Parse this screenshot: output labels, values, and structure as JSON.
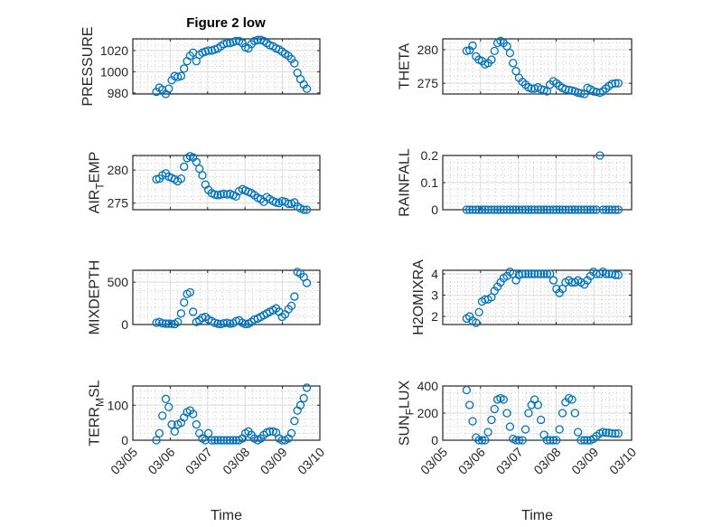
{
  "figure_title": "Figure 2 low",
  "chart_data": {
    "type": "scatter",
    "title": "Figure 2 low",
    "marker": "open-circle",
    "color": "#0072BD",
    "grid": "major+minor",
    "xlabel": "Time",
    "x_unit": "days since 03/05 00:00",
    "xlim": [
      0,
      5
    ],
    "xticks": [
      0,
      1,
      2,
      3,
      4,
      5
    ],
    "xtick_labels": [
      "03/05",
      "03/06",
      "03/07",
      "03/08",
      "03/09",
      "03/10"
    ],
    "x": [
      0.63,
      0.71,
      0.79,
      0.88,
      0.96,
      1.04,
      1.12,
      1.2,
      1.29,
      1.37,
      1.45,
      1.53,
      1.61,
      1.7,
      1.78,
      1.86,
      1.94,
      2.02,
      2.11,
      2.19,
      2.27,
      2.35,
      2.43,
      2.52,
      2.6,
      2.68,
      2.76,
      2.84,
      2.93,
      3.01,
      3.09,
      3.17,
      3.25,
      3.34,
      3.42,
      3.5,
      3.58,
      3.66,
      3.75,
      3.83,
      3.91,
      3.99,
      4.07,
      4.16,
      4.24,
      4.32,
      4.4,
      4.48,
      4.57,
      4.65
    ],
    "panels": [
      {
        "ylabel": "PRESSURE",
        "ylim": [
          979,
          1031
        ],
        "yticks": [
          980,
          1000,
          1020
        ],
        "yminor": 5,
        "values": [
          981,
          985,
          983,
          979,
          984,
          992,
          996,
          995,
          996,
          1003,
          1010,
          1015,
          1018,
          1010,
          1016,
          1018,
          1019,
          1020,
          1020,
          1021,
          1022,
          1024,
          1026,
          1027,
          1027,
          1028,
          1029,
          1029,
          1027,
          1023,
          1022,
          1026,
          1029,
          1030,
          1030,
          1029,
          1027,
          1025,
          1024,
          1022,
          1021,
          1019,
          1017,
          1015,
          1012,
          1008,
          999,
          993,
          988,
          984
        ]
      },
      {
        "ylabel": "THETA",
        "ylim": [
          273.4,
          281.6
        ],
        "yticks": [
          275,
          280
        ],
        "yminor": 1,
        "values": [
          279.8,
          279.9,
          280.6,
          279,
          278.5,
          278.3,
          277.8,
          278,
          278.5,
          279.8,
          281,
          281.3,
          281,
          280.5,
          279.5,
          278,
          276.8,
          275.8,
          275.2,
          274.8,
          274.4,
          274.2,
          274.2,
          274.4,
          274.1,
          274,
          273.8,
          274.8,
          275.3,
          275,
          274.6,
          274.3,
          274.1,
          274,
          273.9,
          273.8,
          273.6,
          273.5,
          273.4,
          274.3,
          274.1,
          273.8,
          273.7,
          273.6,
          273.8,
          274.2,
          274.6,
          274.9,
          275,
          275
        ]
      },
      {
        "ylabel": "AIR_TEMP",
        "ylim": [
          274,
          282.2
        ],
        "yticks": [
          275,
          280
        ],
        "yminor": 1,
        "values": [
          278.6,
          278.7,
          279.2,
          279.5,
          279,
          278.8,
          278.6,
          278.3,
          278.7,
          280.5,
          281.8,
          282.1,
          281.9,
          281.2,
          280.2,
          279.2,
          277.8,
          277,
          276.5,
          276.3,
          276.2,
          276.3,
          276.4,
          276.3,
          276.4,
          276.2,
          276,
          276.8,
          277.1,
          276.9,
          276.7,
          276.5,
          276.2,
          275.8,
          275.6,
          275.2,
          275.9,
          275.6,
          275.3,
          275.1,
          275,
          275.3,
          275.2,
          274.9,
          274.9,
          275.1,
          274.5,
          274.2,
          274,
          274
        ]
      },
      {
        "ylabel": "RAINFALL",
        "ylim": [
          0,
          0.2
        ],
        "yticks": [
          0,
          0.1,
          0.2
        ],
        "yminor": 0.025,
        "values": [
          0,
          0,
          0,
          0,
          0,
          0,
          0,
          0,
          0,
          0,
          0,
          0,
          0,
          0,
          0,
          0,
          0,
          0,
          0,
          0,
          0,
          0,
          0,
          0,
          0,
          0,
          0,
          0,
          0,
          0,
          0,
          0,
          0,
          0,
          0,
          0,
          0,
          0,
          0,
          0,
          0,
          0,
          0,
          0.2,
          0,
          0,
          0,
          0,
          0,
          0
        ]
      },
      {
        "ylabel": "MIXDEPTH",
        "ylim": [
          0,
          640
        ],
        "yticks": [
          0,
          500
        ],
        "yminor": 100,
        "values": [
          20,
          30,
          15,
          10,
          10,
          8,
          5,
          30,
          130,
          260,
          360,
          380,
          150,
          30,
          50,
          80,
          90,
          60,
          40,
          20,
          10,
          5,
          15,
          20,
          10,
          15,
          40,
          50,
          20,
          5,
          10,
          30,
          60,
          70,
          90,
          110,
          130,
          150,
          170,
          190,
          150,
          90,
          120,
          180,
          220,
          330,
          620,
          600,
          560,
          490
        ]
      },
      {
        "ylabel": "H2OMIXRA",
        "ylim": [
          1.62,
          4.17
        ],
        "yticks": [
          2,
          3,
          4
        ],
        "yminor": 0.2,
        "values": [
          1.9,
          2.0,
          1.8,
          1.7,
          2.2,
          2.7,
          2.8,
          2.8,
          2.9,
          3.2,
          3.4,
          3.6,
          3.8,
          3.9,
          4.1,
          4.0,
          3.7,
          3.95,
          4.0,
          4.0,
          4.0,
          4.0,
          4.0,
          4.0,
          4.0,
          4.0,
          4.0,
          4.0,
          3.7,
          3.3,
          3.1,
          3.3,
          3.6,
          3.7,
          3.6,
          3.6,
          3.7,
          3.6,
          3.5,
          3.7,
          3.9,
          4.1,
          4.0,
          4.0,
          4.1,
          4.0,
          4.0,
          4.0,
          3.95,
          3.95
        ]
      },
      {
        "ylabel": "TERR_MSL",
        "ylim": [
          0,
          155
        ],
        "yticks": [
          0,
          100
        ],
        "yminor": 20,
        "values": [
          0,
          20,
          70,
          118,
          95,
          45,
          25,
          45,
          50,
          65,
          80,
          85,
          75,
          45,
          20,
          5,
          0,
          20,
          0,
          0,
          0,
          0,
          0,
          0,
          0,
          0,
          0,
          0,
          5,
          20,
          25,
          15,
          5,
          0,
          5,
          15,
          22,
          25,
          25,
          22,
          5,
          0,
          0,
          5,
          20,
          55,
          85,
          100,
          120,
          150
        ]
      },
      {
        "ylabel": "SUN_FLUX",
        "ylim": [
          0,
          400
        ],
        "yticks": [
          0,
          200,
          400
        ],
        "yminor": 50,
        "values": [
          370,
          260,
          140,
          20,
          0,
          0,
          0,
          60,
          150,
          230,
          300,
          310,
          300,
          200,
          100,
          10,
          0,
          0,
          0,
          80,
          200,
          260,
          300,
          260,
          150,
          40,
          0,
          0,
          0,
          0,
          80,
          200,
          280,
          310,
          300,
          200,
          60,
          0,
          0,
          0,
          0,
          10,
          30,
          50,
          60,
          55,
          55,
          50,
          50,
          50
        ]
      }
    ]
  }
}
